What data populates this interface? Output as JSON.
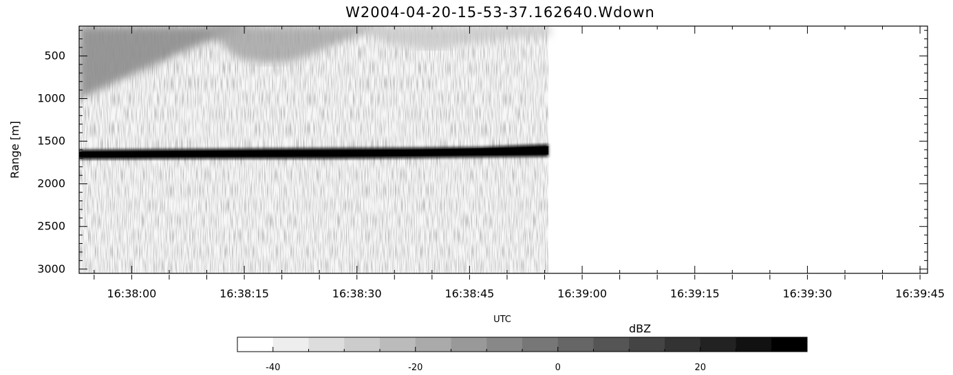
{
  "chart_data": [
    {
      "type": "heatmap",
      "title": "W2004-04-20-15-53-37.162640.Wdown",
      "xlabel": "UTC",
      "ylabel": "Range [m]",
      "x_axis": {
        "min": "16:37:53",
        "max": "16:39:46",
        "tick_labels": [
          "16:38:00",
          "16:38:15",
          "16:38:30",
          "16:38:45",
          "16:39:00",
          "16:39:15",
          "16:39:30",
          "16:39:45"
        ]
      },
      "y_axis": {
        "min": 150,
        "max": 3050,
        "inverted": true,
        "tick_labels": [
          "500",
          "1000",
          "1500",
          "2000",
          "2500",
          "3000"
        ]
      },
      "data_extent_x": [
        "16:37:53",
        "16:38:56"
      ],
      "features": [
        {
          "kind": "strong_return_layer",
          "range_m": [
            1545,
            1645
          ],
          "dbz": 35
        },
        {
          "kind": "near_range_clutter",
          "range_m": [
            150,
            940
          ],
          "dbz": -15
        },
        {
          "kind": "background_noise",
          "range_m": [
            150,
            3050
          ],
          "dbz": -40
        }
      ],
      "colorbar": {
        "label": "dBZ",
        "min": -45,
        "max": 35,
        "ticks": [
          "-40",
          "-20",
          "0",
          "20"
        ],
        "colormap": "white-to-black"
      },
      "grid": false,
      "legend": "none"
    }
  ]
}
